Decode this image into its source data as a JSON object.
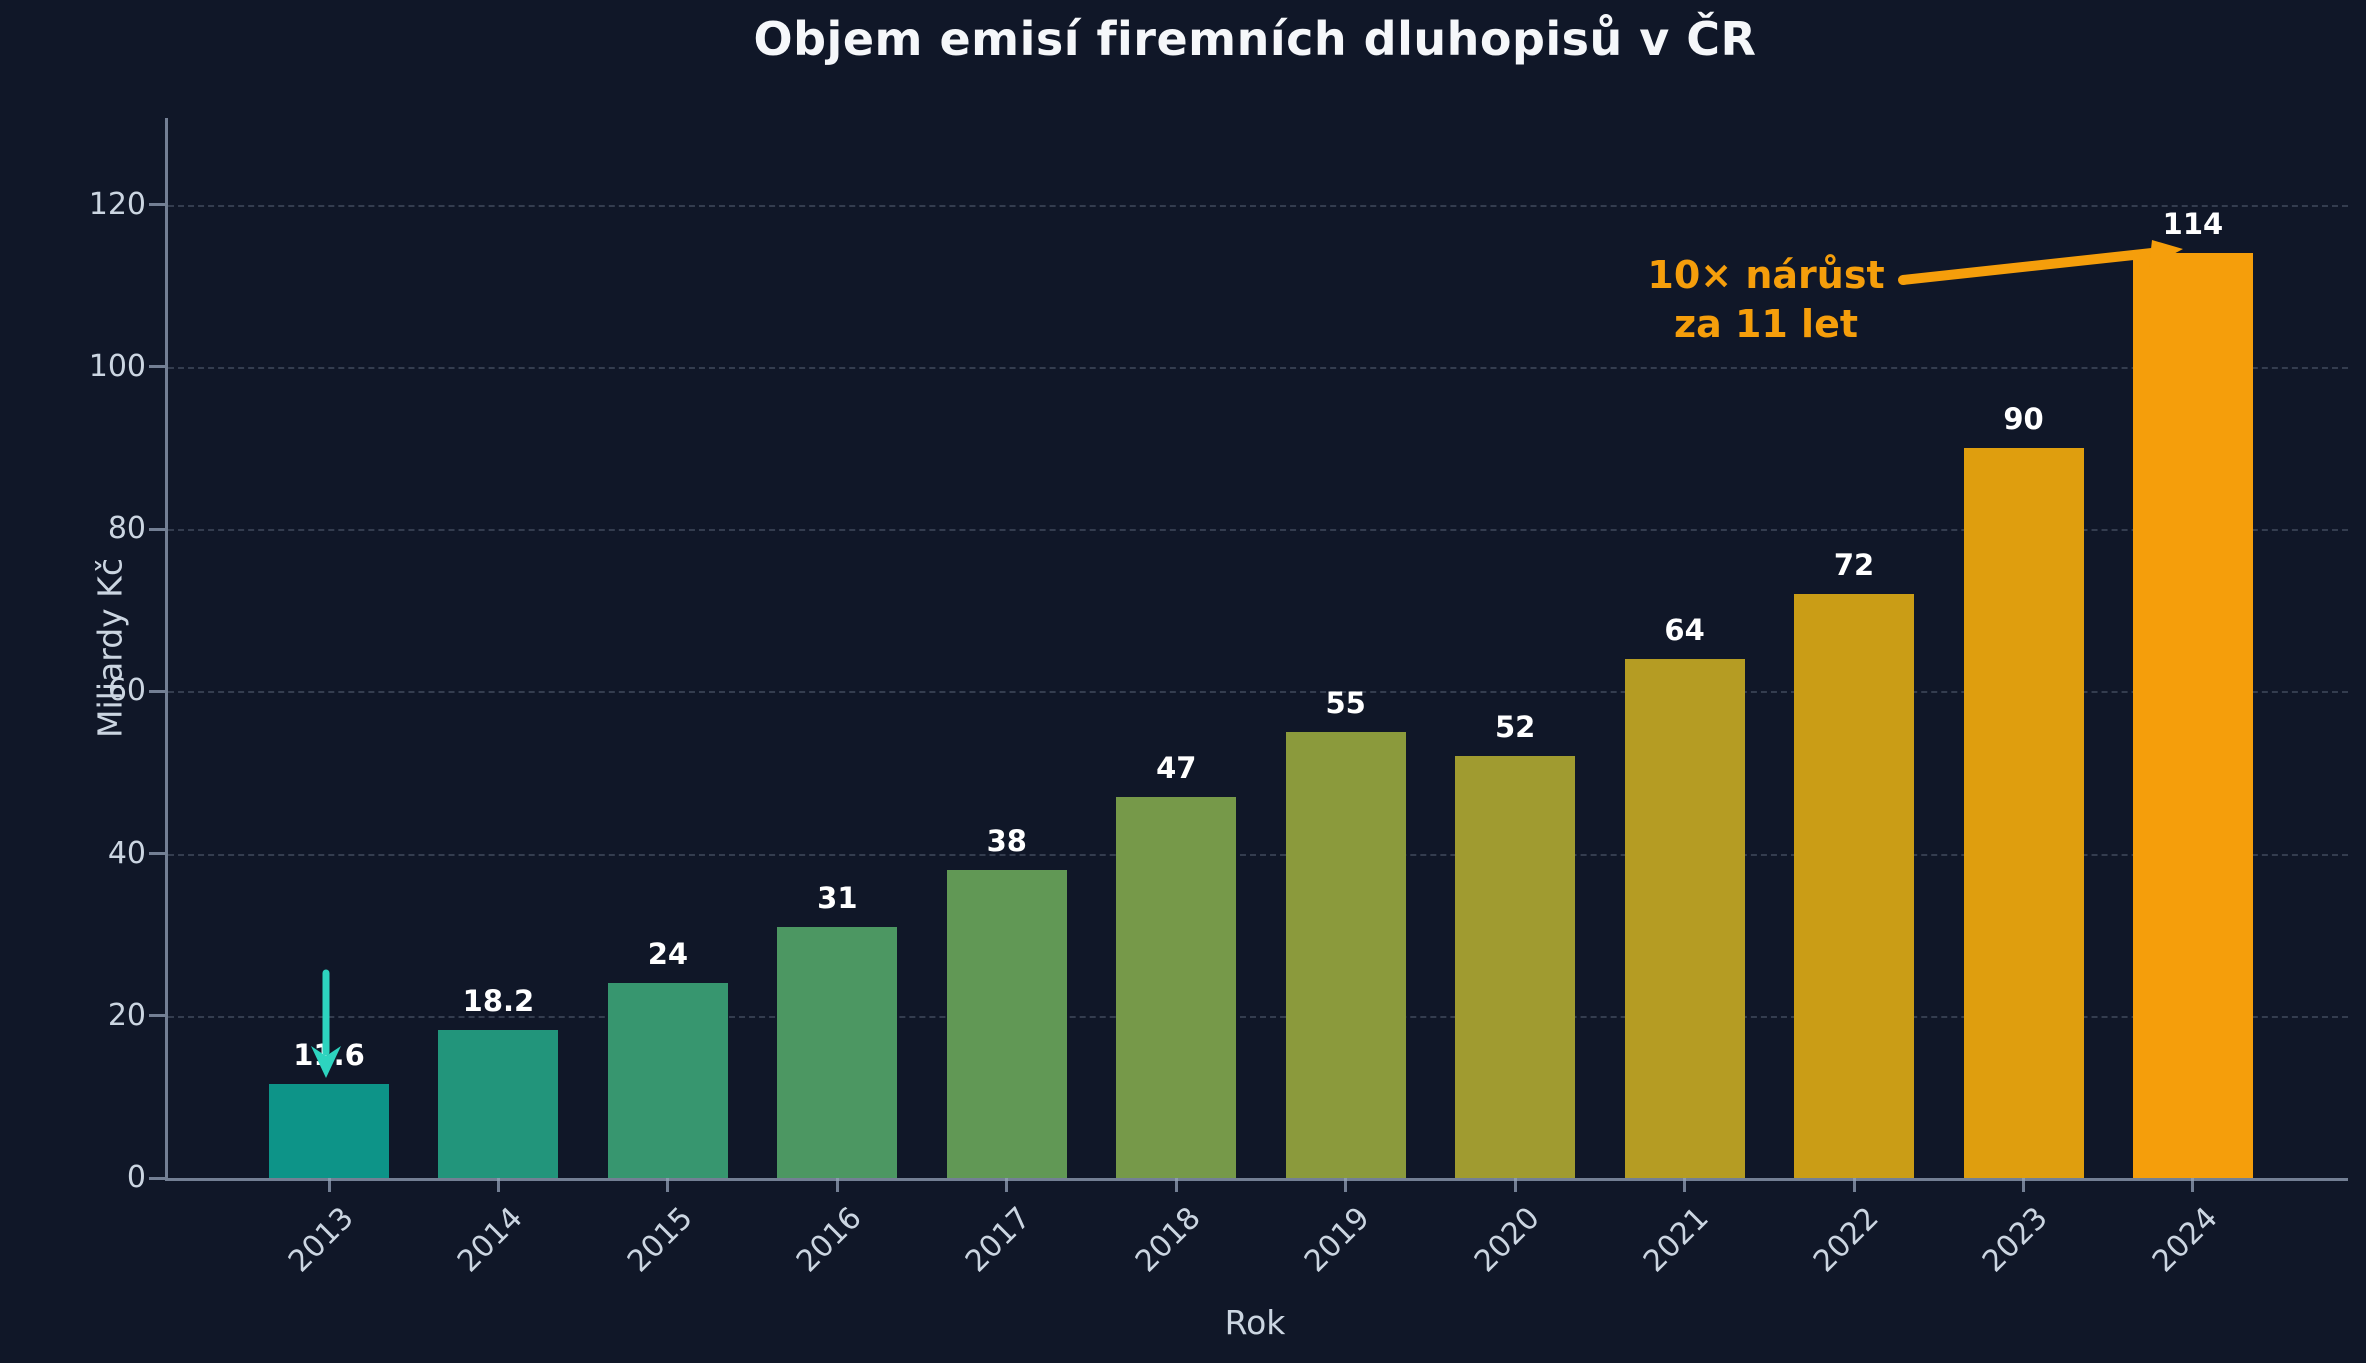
{
  "title": "Objem emisí firemních dluhopisů v ČR",
  "chart_data": {
    "type": "bar",
    "title": "Objem emisí firemních dluhopisů v ČR",
    "categories": [
      "2013",
      "2014",
      "2015",
      "2016",
      "2017",
      "2018",
      "2019",
      "2020",
      "2021",
      "2022",
      "2023",
      "2024"
    ],
    "values": [
      11.6,
      18.2,
      24,
      31,
      38,
      47,
      55,
      52,
      64,
      72,
      90,
      114
    ],
    "value_labels": [
      "11.6",
      "18.2",
      "24",
      "31",
      "38",
      "47",
      "55",
      "52",
      "64",
      "72",
      "90",
      "114"
    ],
    "bar_colors": [
      "#0d9488",
      "#22957b",
      "#37966f",
      "#4c9762",
      "#619855",
      "#769949",
      "#8b9a3c",
      "#a09b30",
      "#b59c23",
      "#ca9d16",
      "#df9e0e",
      "#f59e0b"
    ],
    "xlabel": "Rok",
    "ylabel": "Miliardy Kč",
    "yticks": [
      0,
      20,
      40,
      60,
      80,
      100,
      120
    ],
    "ylim": [
      0,
      130.7
    ],
    "grid": "horizontal dashed",
    "legend": "none",
    "annotations": [
      {
        "type": "text-with-arrow",
        "line1": "10× nárůst",
        "line2": "za 11 let",
        "color": "#f59e0b",
        "arrow_points_to": "top of 2024 bar (114)"
      },
      {
        "type": "arrow",
        "color": "#2dd4bf",
        "arrow_points_to": "top of 2013 bar (11.6)"
      }
    ]
  },
  "colors": {
    "background": "#101728",
    "axis": "#94a3b8",
    "grid": "#94a3b8",
    "tick_label": "#cbd5e1",
    "title": "#f5f7fa",
    "value_label": "#ffffff",
    "annotation_orange": "#f59e0b",
    "annotation_teal": "#2dd4bf"
  }
}
